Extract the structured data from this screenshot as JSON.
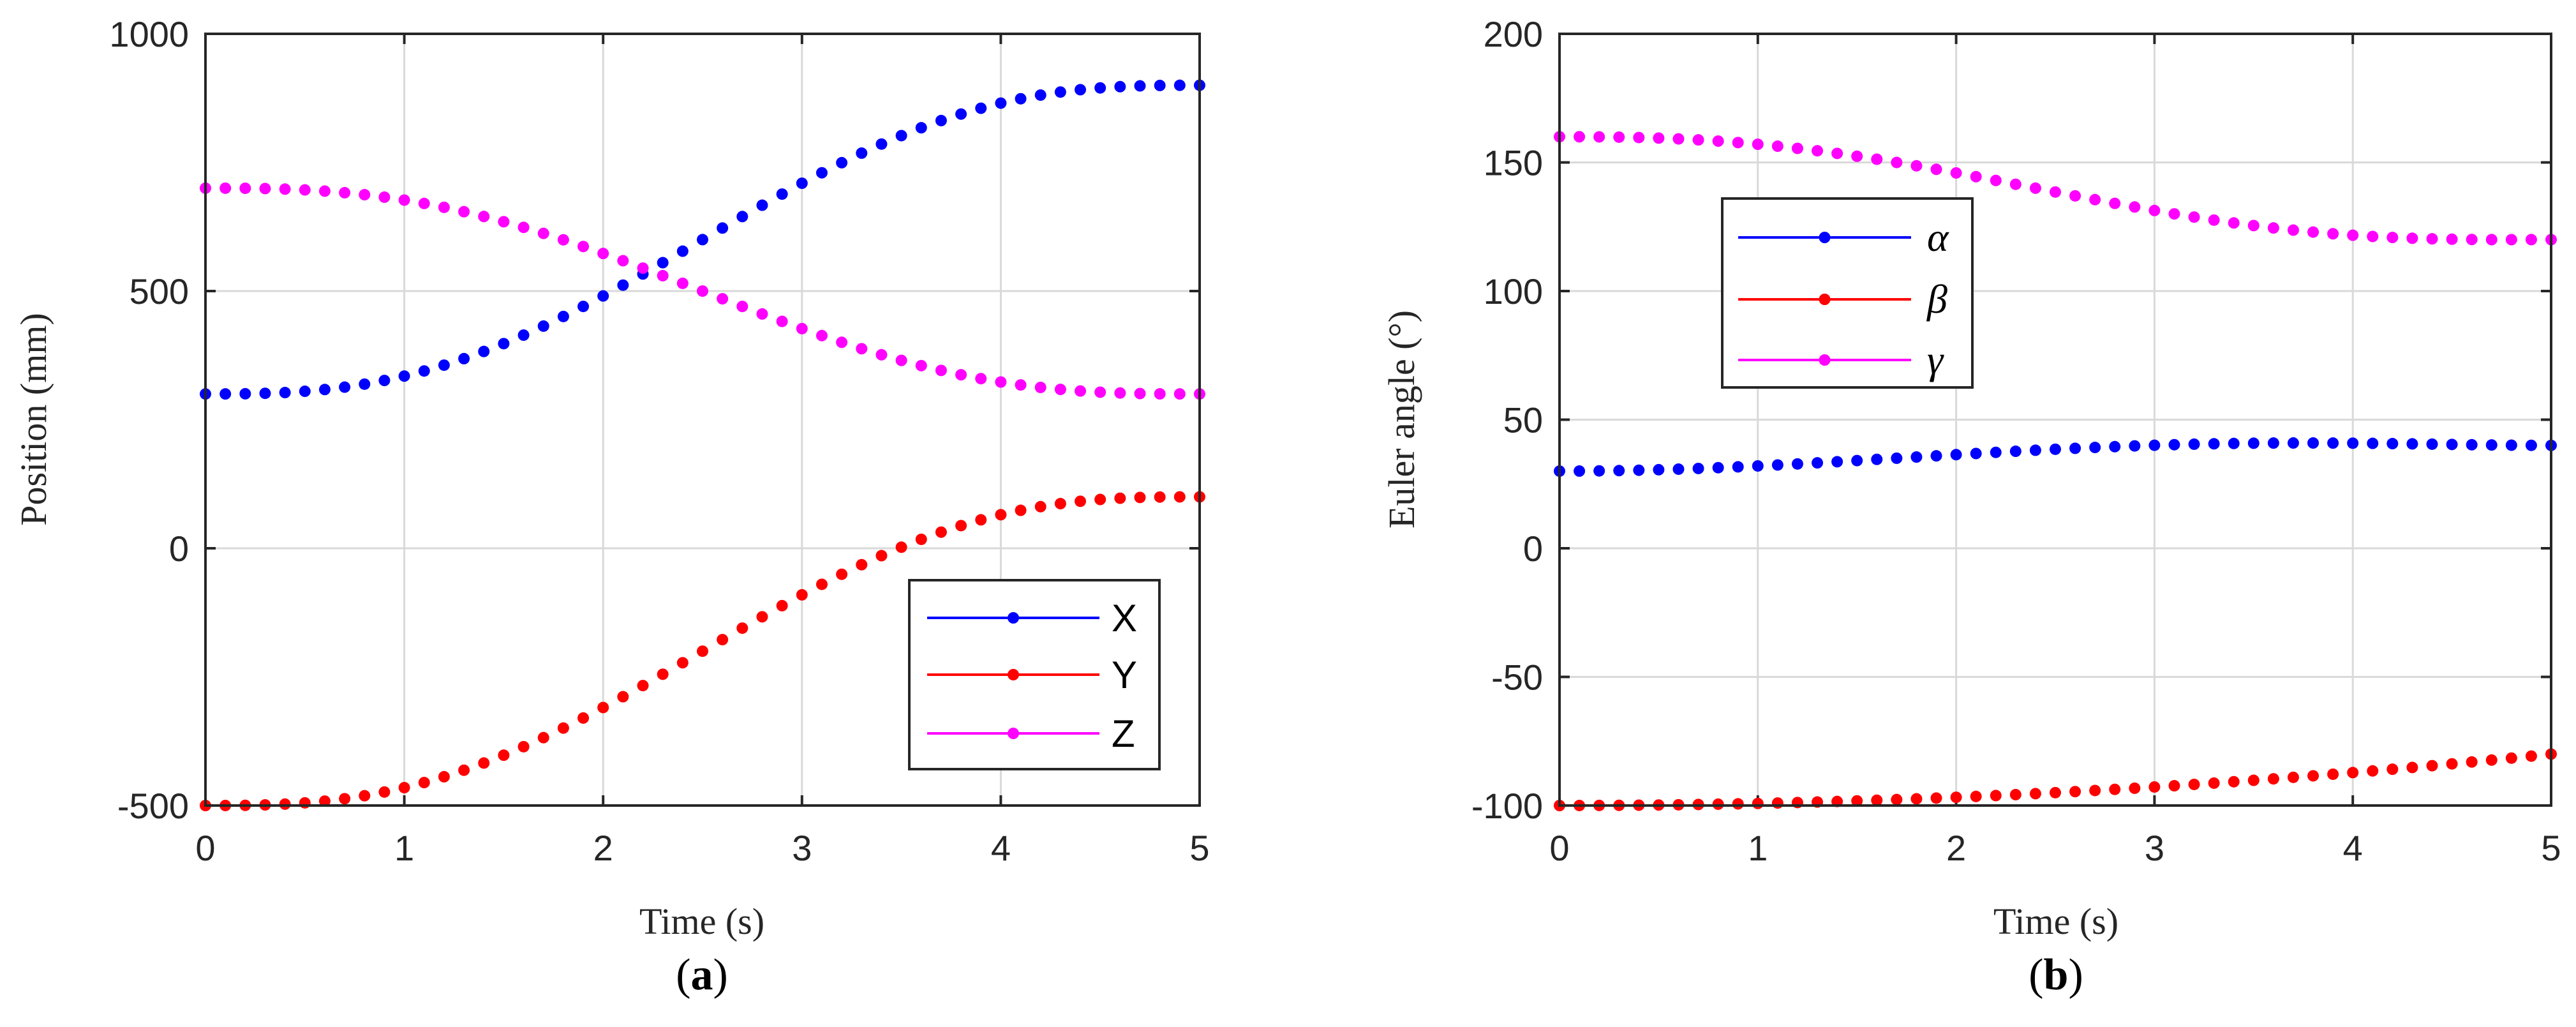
{
  "chart_data": [
    {
      "type": "scatter",
      "caption": "a",
      "xlabel": "Time (s)",
      "ylabel": "Position (mm)",
      "xlim": [
        0,
        5
      ],
      "ylim": [
        -500,
        1000
      ],
      "xticks": [
        "0",
        "1",
        "2",
        "3",
        "4",
        "5"
      ],
      "yticks": [
        "-500",
        "0",
        "500",
        "1000"
      ],
      "grid": true,
      "legend": {
        "placement": "bottom-right",
        "italic": false
      },
      "series": [
        {
          "name": "X",
          "color": "#0000ff",
          "start": 300,
          "end": 900
        },
        {
          "name": "Y",
          "color": "#ff0000",
          "start": -500,
          "end": 100
        },
        {
          "name": "Z",
          "color": "#ff00ff",
          "start": 700,
          "end": 300
        }
      ],
      "duration": 5,
      "samples": 51
    },
    {
      "type": "scatter",
      "caption": "b",
      "xlabel": "Time (s)",
      "ylabel": "Euler angle (°)",
      "xlim": [
        0,
        5
      ],
      "ylim": [
        -100,
        200
      ],
      "xticks": [
        "0",
        "1",
        "2",
        "3",
        "4",
        "5"
      ],
      "yticks": [
        "-100",
        "-50",
        "0",
        "50",
        "100",
        "150",
        "200"
      ],
      "grid": true,
      "legend": {
        "placement": "top-left",
        "italic": true
      },
      "series": [
        {
          "name": "α",
          "color": "#0000ff",
          "start": 30,
          "end": 40,
          "overshoot": 3.5
        },
        {
          "name": "β",
          "color": "#ff0000",
          "start": -100,
          "end": -80,
          "mode": "accelerating"
        },
        {
          "name": "γ",
          "color": "#ff00ff",
          "start": 160,
          "end": 120,
          "overshoot": -1.5
        }
      ],
      "duration": 5,
      "samples": 51
    }
  ]
}
